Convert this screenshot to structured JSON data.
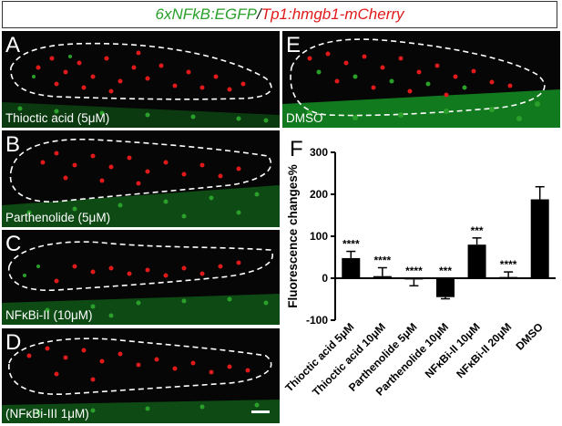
{
  "header": {
    "part1": "6xNFkB:EGFP",
    "sep": "/",
    "part2": "Tp1:hmgb1-mCherry"
  },
  "panels": [
    {
      "letter": "A",
      "caption": "Thioctic acid (5μM)"
    },
    {
      "letter": "B",
      "caption": "Parthenolide (5μM)"
    },
    {
      "letter": "C",
      "caption": "NFκBi-II (10μM)"
    },
    {
      "letter": "D",
      "caption": "(NFκBi-III 1μM)"
    },
    {
      "letter": "E",
      "caption": "DMSO"
    }
  ],
  "figure_letter": "F",
  "colors": {
    "bar": "#000000",
    "green": "#2aa02a",
    "red": "#e0191b"
  },
  "chart_data": {
    "type": "bar",
    "ylabel": "Fluorescence changes%",
    "ylim": [
      -100,
      300
    ],
    "yticks": [
      -100,
      0,
      100,
      200,
      300
    ],
    "categories": [
      "Thioctic acid 5μM",
      "Thioctic acid 10μM",
      "Parthenolide 5μM",
      "Parthenolide 10μM",
      "NFκBi-II 10μM",
      "NFκBi-II 20μM",
      "DMSO"
    ],
    "values": [
      48,
      5,
      -3,
      -45,
      80,
      3,
      188
    ],
    "errors": [
      16,
      20,
      15,
      4,
      16,
      12,
      30
    ],
    "significance": [
      "****",
      "****",
      "****",
      "***",
      "***",
      "****",
      ""
    ],
    "grid": false
  }
}
